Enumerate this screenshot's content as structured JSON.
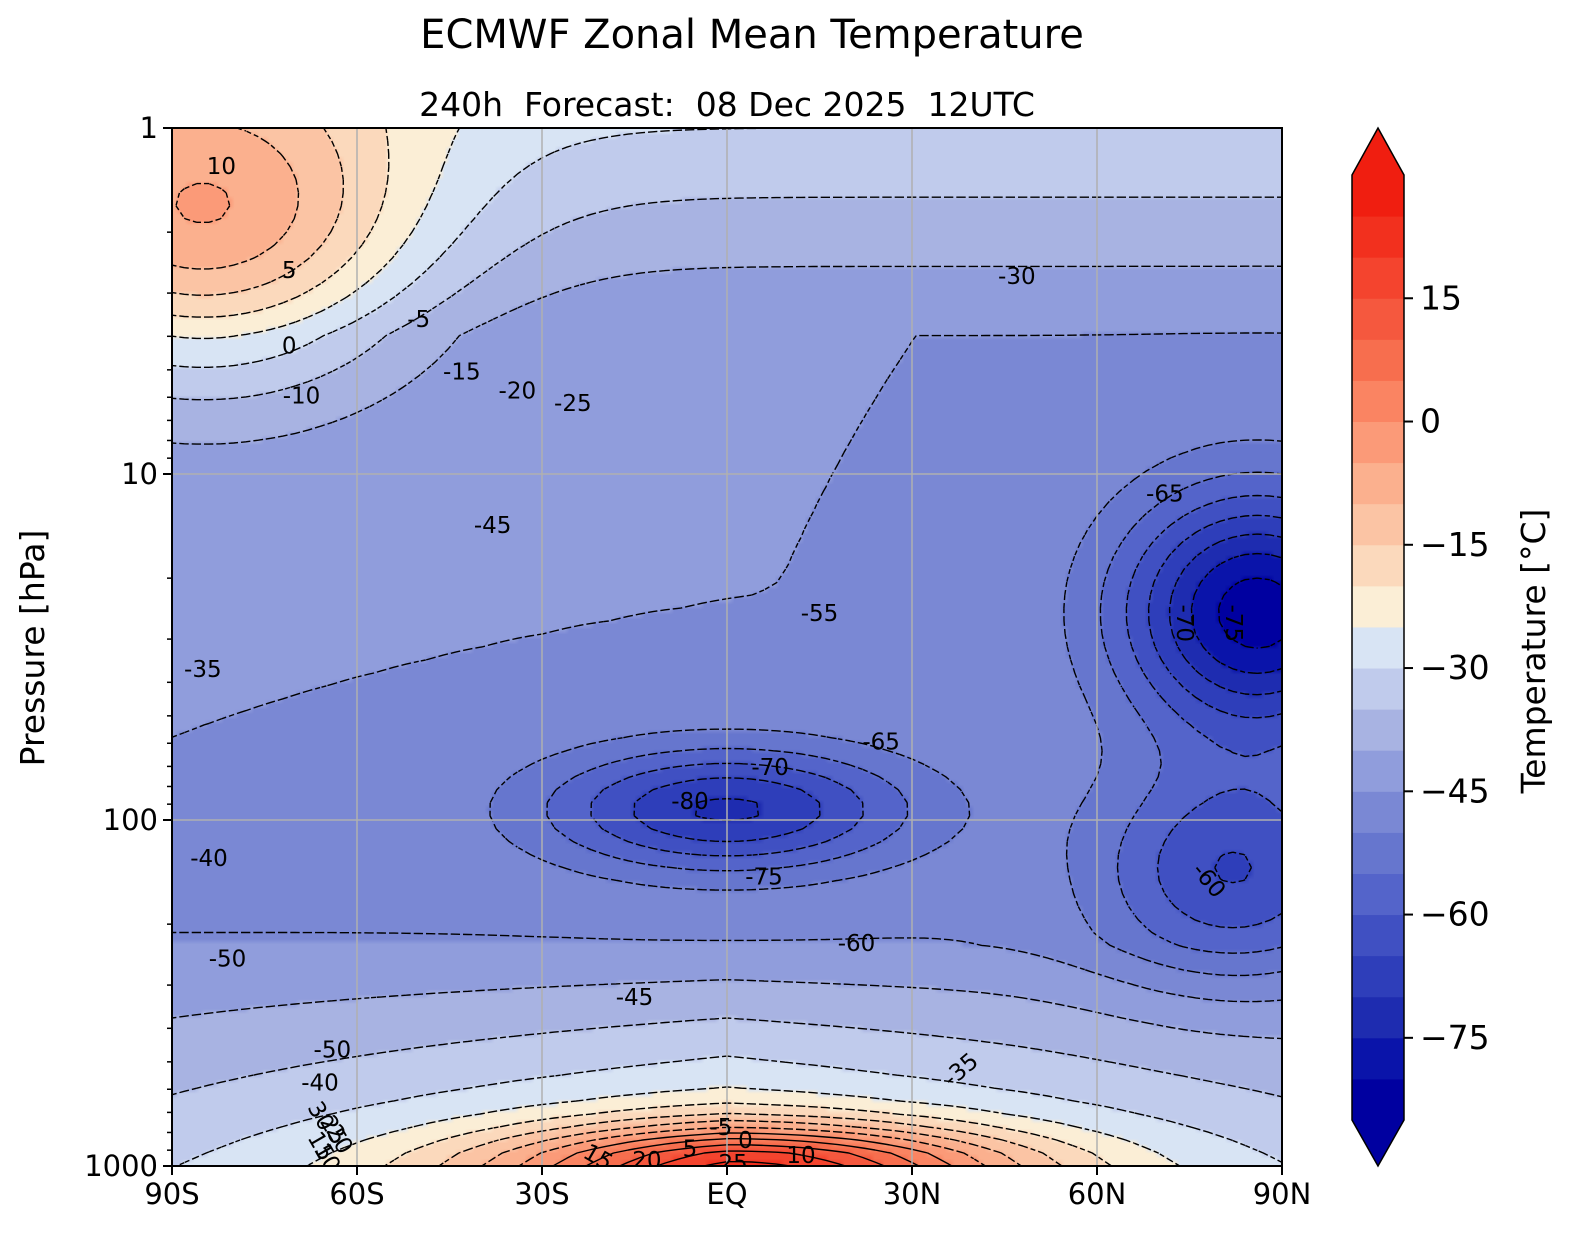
{
  "chart_data": {
    "type": "heatmap",
    "title": "ECMWF Zonal Mean Temperature",
    "subtitle": "240h  Forecast:  08 Dec 2025  12UTC",
    "xlabel": "",
    "ylabel": "Pressure [hPa]",
    "colorbar_label": "Temperature [°C]",
    "x_ticks": [
      "90S",
      "60S",
      "30S",
      "EQ",
      "30N",
      "60N",
      "90N"
    ],
    "x_tick_values": [
      -90,
      -60,
      -30,
      0,
      30,
      60,
      90
    ],
    "y_ticks": [
      "1",
      "10",
      "100",
      "1000"
    ],
    "y_tick_values": [
      1,
      10,
      100,
      1000
    ],
    "xlim": [
      -90,
      90
    ],
    "ylim": [
      1000,
      1
    ],
    "y_scale": "log",
    "grid": true,
    "colorbar_ticks": [
      "15",
      "0",
      "−15",
      "−30",
      "−45",
      "−60",
      "−75"
    ],
    "colorbar_tick_values": [
      15,
      0,
      -15,
      -30,
      -45,
      -60,
      -75
    ],
    "levels": [
      -85,
      -80,
      -75,
      -70,
      -65,
      -60,
      -55,
      -50,
      -45,
      -40,
      -35,
      -30,
      -25,
      -20,
      -15,
      -10,
      -5,
      0,
      5,
      10,
      15,
      20,
      25
    ],
    "colors": [
      "#0000a0",
      "#0a14aa",
      "#1e2cb0",
      "#2e3eba",
      "#4050c2",
      "#5464ca",
      "#6676ce",
      "#7a88d4",
      "#909ddc",
      "#a8b3e2",
      "#c0cbec",
      "#d8e4f4",
      "#fbeed6",
      "#fbd9bc",
      "#fbc4a4",
      "#fbb08e",
      "#fb9a78",
      "#fa8462",
      "#f76e4e",
      "#f5583e",
      "#f4442e",
      "#f2301e",
      "#f01e10"
    ],
    "contour_labels": [
      {
        "text": "10",
        "lon": -82,
        "p": 1.3
      },
      {
        "text": "5",
        "lon": -71,
        "p": 2.6
      },
      {
        "text": "0",
        "lon": -71,
        "p": 4.3
      },
      {
        "text": "-5",
        "lon": -50,
        "p": 3.6
      },
      {
        "text": "-10",
        "lon": -69,
        "p": 6.0
      },
      {
        "text": "-15",
        "lon": -43,
        "p": 5.1
      },
      {
        "text": "-20",
        "lon": -34,
        "p": 5.8
      },
      {
        "text": "-25",
        "lon": -25,
        "p": 6.3
      },
      {
        "text": "-30",
        "lon": 47,
        "p": 2.7
      },
      {
        "text": "-35",
        "lon": -85,
        "p": 37
      },
      {
        "text": "-40",
        "lon": -84,
        "p": 130
      },
      {
        "text": "-45",
        "lon": -38,
        "p": 14.2
      },
      {
        "text": "-50",
        "lon": -81,
        "p": 254
      },
      {
        "text": "-50",
        "lon": -64,
        "p": 465
      },
      {
        "text": "-40",
        "lon": -66,
        "p": 580
      },
      {
        "text": "-45",
        "lon": -15,
        "p": 328
      },
      {
        "text": "-55",
        "lon": 15,
        "p": 25.5
      },
      {
        "text": "-60",
        "lon": 21,
        "p": 229
      },
      {
        "text": "-65",
        "lon": 25,
        "p": 60
      },
      {
        "text": "-65",
        "lon": 71,
        "p": 11.5
      },
      {
        "text": "-70",
        "lon": 7,
        "p": 71
      },
      {
        "text": "-70",
        "lon": 74,
        "p": 27,
        "rot": 90
      },
      {
        "text": "-75",
        "lon": 82,
        "p": 27,
        "rot": 90
      },
      {
        "text": "-75",
        "lon": 6,
        "p": 147
      },
      {
        "text": "-80",
        "lon": -6,
        "p": 89
      },
      {
        "text": "-60",
        "lon": 78,
        "p": 150,
        "rot": 50
      },
      {
        "text": "-35",
        "lon": 38,
        "p": 530,
        "rot": -40
      },
      {
        "text": "-5",
        "lon": -1,
        "p": 780
      },
      {
        "text": "0",
        "lon": 3,
        "p": 850
      },
      {
        "text": "5",
        "lon": -6,
        "p": 900
      },
      {
        "text": "10",
        "lon": 12,
        "p": 940
      },
      {
        "text": "15",
        "lon": -21,
        "p": 950,
        "rot": 30
      },
      {
        "text": "20",
        "lon": -13,
        "p": 970
      },
      {
        "text": "25",
        "lon": 1,
        "p": 990
      },
      {
        "text": "30",
        "lon": -66,
        "p": 720,
        "rot": 60
      },
      {
        "text": "25",
        "lon": -64,
        "p": 790,
        "rot": 60
      },
      {
        "text": "20",
        "lon": -63,
        "p": 840,
        "rot": 60
      },
      {
        "text": "15",
        "lon": -66,
        "p": 880,
        "rot": 60
      },
      {
        "text": "10",
        "lon": -65,
        "p": 950,
        "rot": 60
      }
    ]
  }
}
